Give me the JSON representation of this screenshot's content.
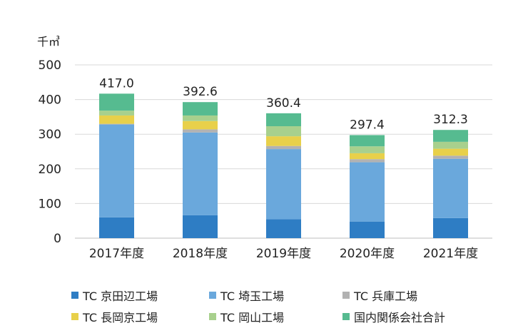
{
  "chart_data": {
    "type": "bar",
    "stacked": true,
    "unit_label": "千㎥",
    "categories": [
      "2017年度",
      "2018年度",
      "2019年度",
      "2020年度",
      "2021年度"
    ],
    "ylim": [
      0,
      500
    ],
    "yticks": [
      0,
      100,
      200,
      300,
      400,
      500
    ],
    "grid": true,
    "totals": [
      "417.0",
      "392.6",
      "360.4",
      "297.4",
      "312.3"
    ],
    "total_values": [
      417.0,
      392.6,
      360.4,
      297.4,
      312.3
    ],
    "series": [
      {
        "name": "TC 京田辺工場",
        "color": "#2e7dc4",
        "values": [
          60,
          66,
          55,
          48,
          58
        ]
      },
      {
        "name": "TC 埼玉工場",
        "color": "#6aa8dc",
        "values": [
          268,
          239,
          202,
          171,
          171
        ]
      },
      {
        "name": "TC 兵庫工場",
        "color": "#b2b2b2",
        "values": [
          2,
          9,
          9,
          9,
          9
        ]
      },
      {
        "name": "TC 長岡京工場",
        "color": "#e8d04a",
        "values": [
          24,
          24,
          28,
          17,
          20
        ]
      },
      {
        "name": "TC 岡山工場",
        "color": "#a8d08d",
        "values": [
          14,
          16,
          29,
          20,
          20
        ]
      },
      {
        "name": "国内関係会社合計",
        "color": "#56bb90",
        "values": [
          49,
          38.6,
          37.4,
          32.4,
          34.3
        ]
      }
    ],
    "legend_position": "bottom"
  }
}
